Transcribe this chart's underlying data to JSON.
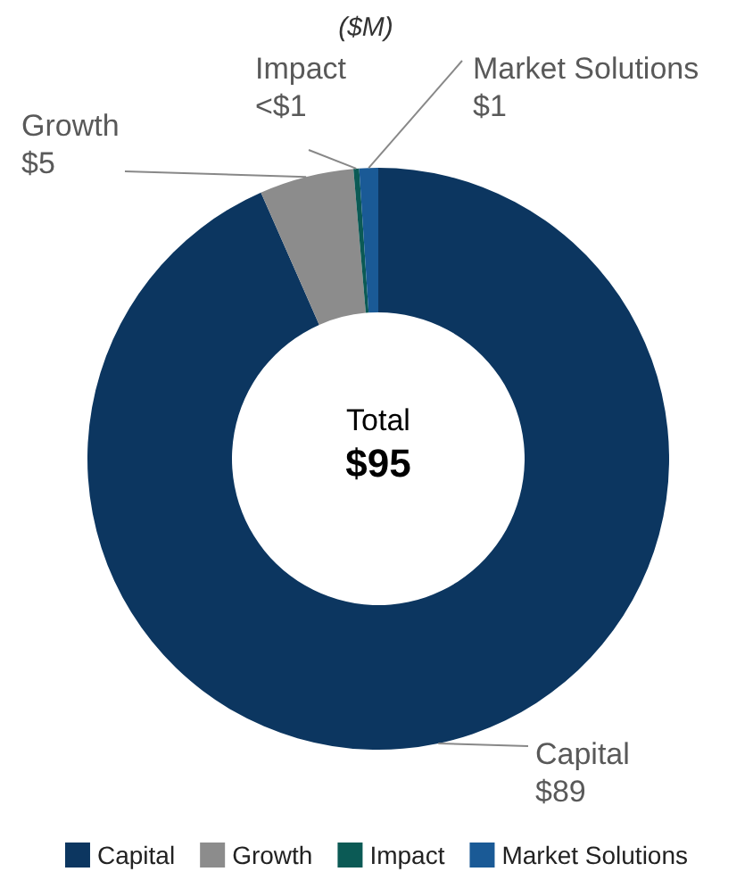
{
  "chart_data": {
    "type": "donut",
    "title": "($M)",
    "categories": [
      "Capital",
      "Growth",
      "Impact",
      "Market Solutions"
    ],
    "values": [
      89,
      5,
      0.3,
      1
    ],
    "value_labels": [
      "$89",
      "$5",
      "<$1",
      "$1"
    ],
    "colors": [
      "#0c3660",
      "#8c8c8c",
      "#0b5a55",
      "#1a5a96"
    ],
    "annotations": [
      "Total",
      "$95"
    ],
    "legend": "bottom"
  }
}
